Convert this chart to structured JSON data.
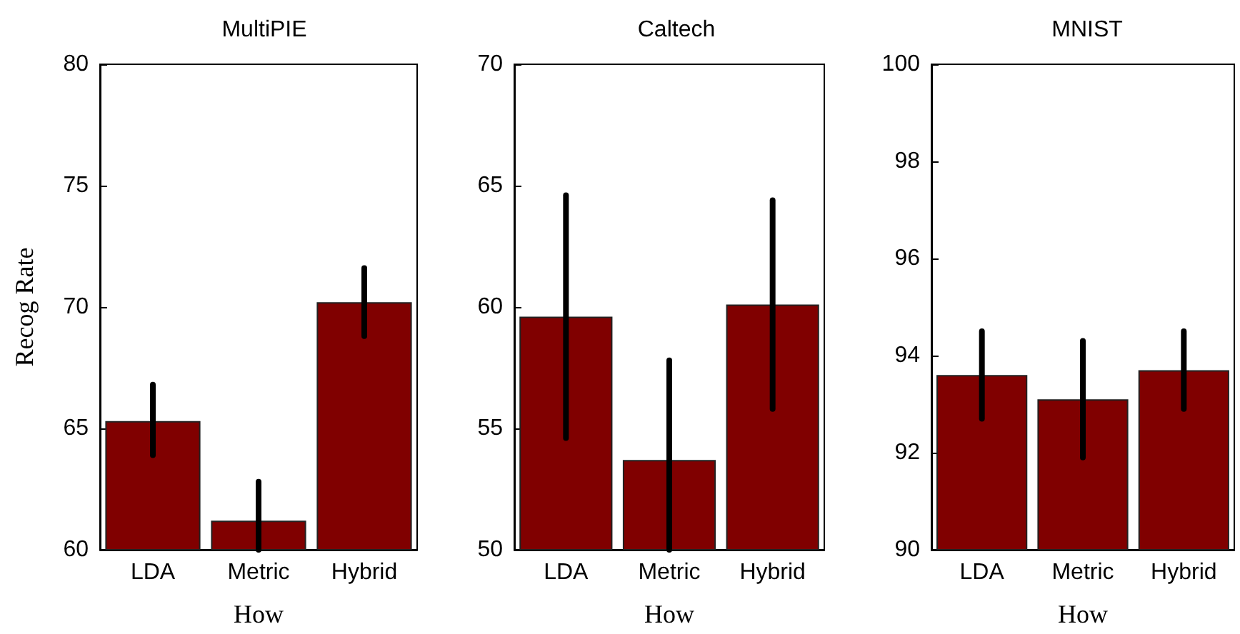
{
  "chart_data": [
    {
      "type": "bar",
      "title": "MultiPIE",
      "xlabel": "How",
      "ylabel": "Recog Rate",
      "categories": [
        "LDA",
        "Metric",
        "Hybrid"
      ],
      "values": [
        65.3,
        61.2,
        70.2
      ],
      "errors": [
        [
          63.9,
          66.8
        ],
        [
          60,
          62.8
        ],
        [
          68.8,
          71.6
        ]
      ],
      "color": "#800000",
      "ylim": [
        60,
        80
      ],
      "yticks": [
        60,
        65,
        70,
        75,
        80
      ],
      "grid": false
    },
    {
      "type": "bar",
      "title": "Caltech",
      "xlabel": "How",
      "categories": [
        "LDA",
        "Metric",
        "Hybrid"
      ],
      "values": [
        59.6,
        53.7,
        60.1
      ],
      "errors": [
        [
          54.6,
          64.6
        ],
        [
          50,
          57.8
        ],
        [
          55.8,
          64.4
        ]
      ],
      "color": "#800000",
      "ylim": [
        50,
        70
      ],
      "yticks": [
        50,
        55,
        60,
        65,
        70
      ],
      "grid": false
    },
    {
      "type": "bar",
      "title": "MNIST",
      "xlabel": "How",
      "categories": [
        "LDA",
        "Metric",
        "Hybrid"
      ],
      "values": [
        93.6,
        93.1,
        93.7
      ],
      "errors": [
        [
          92.7,
          94.5
        ],
        [
          91.9,
          94.3
        ],
        [
          92.9,
          94.5
        ]
      ],
      "color": "#800000",
      "ylim": [
        90,
        100
      ],
      "yticks": [
        90,
        92,
        94,
        96,
        98,
        100
      ],
      "grid": false
    }
  ]
}
